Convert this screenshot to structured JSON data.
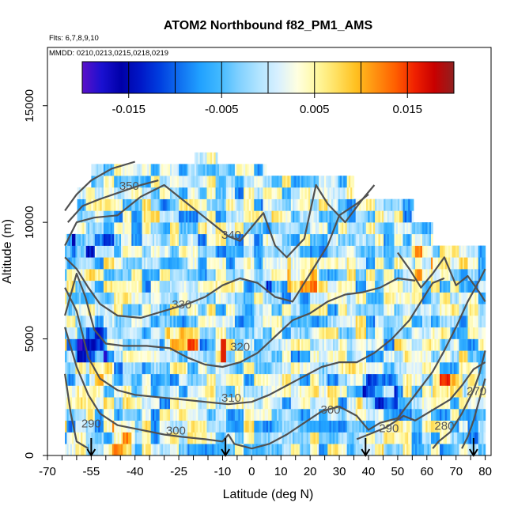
{
  "chart_data": {
    "type": "heatmap",
    "title": "ATOM2 Northbound f82_PM1_AMS",
    "subtitle_flights": "Flts: 6,7,8,9,10",
    "subtitle_dates": "MMDD: 0210,0213,0215,0218,0219",
    "xlabel": "Latitude (deg N)",
    "ylabel": "Altitude (m)",
    "xlim": [
      -70,
      82
    ],
    "ylim": [
      0,
      17500
    ],
    "x_ticks": [
      -70,
      -65,
      -60,
      -55,
      -50,
      -45,
      -40,
      -35,
      -30,
      -25,
      -20,
      -15,
      -10,
      -5,
      0,
      5,
      10,
      15,
      20,
      25,
      30,
      35,
      40,
      45,
      50,
      55,
      60,
      65,
      70,
      75,
      80
    ],
    "x_tick_labels": [
      "-70",
      "-55",
      "-40",
      "-25",
      "-10",
      "0",
      "10",
      "20",
      "30",
      "40",
      "50",
      "60",
      "70",
      "80"
    ],
    "x_tick_label_values": [
      -70,
      -55,
      -40,
      -25,
      -10,
      0,
      10,
      20,
      30,
      40,
      50,
      60,
      70,
      80
    ],
    "y_ticks": [
      0,
      5000,
      10000,
      15000
    ],
    "y_tick_labels": [
      "0",
      "5000",
      "10000",
      "15000"
    ],
    "colorbar": {
      "range": [
        -0.02,
        0.02
      ],
      "ticks": [
        -0.015,
        -0.005,
        0.005,
        0.015
      ],
      "tick_labels": [
        "-0.015",
        "-0.005",
        "0.005",
        "0.015"
      ],
      "colors": [
        "#5b10c8",
        "#1a10d0",
        "#0000a8",
        "#0018c8",
        "#0040e0",
        "#1070f0",
        "#20a0ff",
        "#40b8ff",
        "#80d0ff",
        "#b0e4ff",
        "#d8f0ff",
        "#ffffe0",
        "#fff8a0",
        "#ffe060",
        "#ffc020",
        "#ff9010",
        "#ff6000",
        "#f02000",
        "#c80000",
        "#902020"
      ]
    },
    "theta_contour_labels": [
      {
        "text": "350",
        "lat": -42,
        "alt": 11400
      },
      {
        "text": "340",
        "lat": -7,
        "alt": 9300
      },
      {
        "text": "330",
        "lat": -24,
        "alt": 6300
      },
      {
        "text": "320",
        "lat": -4,
        "alt": 4500
      },
      {
        "text": "310",
        "lat": -7,
        "alt": 2300
      },
      {
        "text": "300",
        "lat": -26,
        "alt": 900
      },
      {
        "text": "300",
        "lat": 27,
        "alt": 1800
      },
      {
        "text": "290",
        "lat": -55,
        "alt": 1200
      },
      {
        "text": "290",
        "lat": 47,
        "alt": 1000
      },
      {
        "text": "280",
        "lat": 66,
        "alt": 1100
      },
      {
        "text": "270",
        "lat": 77,
        "alt": 2600
      }
    ],
    "arrows_lat": [
      -55,
      -9,
      39,
      76
    ],
    "grid": false
  }
}
